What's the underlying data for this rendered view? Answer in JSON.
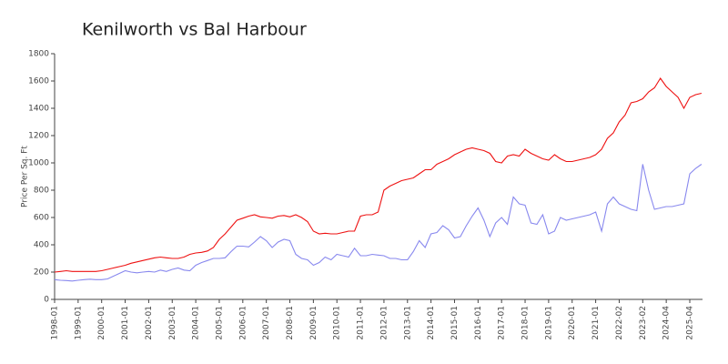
{
  "chart_data": {
    "type": "line",
    "title": "Kenilworth vs Bal Harbour",
    "y_label": "Price Per Sq. Ft",
    "categories": [
      "1998-01",
      null,
      null,
      null,
      "1999-01",
      null,
      null,
      null,
      "2000-01",
      null,
      null,
      null,
      "2001-01",
      null,
      null,
      null,
      "2002-01",
      null,
      null,
      null,
      "2003-01",
      null,
      null,
      null,
      "2004-01",
      null,
      null,
      null,
      "2005-01",
      null,
      null,
      null,
      "2006-01",
      null,
      null,
      null,
      "2007-01",
      null,
      null,
      null,
      "2008-01",
      null,
      null,
      null,
      "2009-01",
      null,
      null,
      null,
      "2010-01",
      null,
      null,
      null,
      "2011-01",
      null,
      null,
      null,
      "2012-01",
      null,
      null,
      null,
      "2013-01",
      null,
      null,
      null,
      "2014-01",
      null,
      null,
      null,
      "2015-01",
      null,
      null,
      null,
      "2016-01",
      null,
      null,
      null,
      "2017-01",
      null,
      null,
      null,
      "2018-01",
      null,
      null,
      null,
      "2019-01",
      null,
      null,
      null,
      "2020-01",
      null,
      null,
      null,
      "2021-01",
      null,
      null,
      null,
      "2022-02",
      null,
      null,
      null,
      "2023-02",
      null,
      null,
      null,
      "2024-04",
      null,
      null,
      null,
      "2025-04",
      null,
      null
    ],
    "series": [
      {
        "name": "Kenilworth",
        "color": "#ee1111",
        "values": [
          200,
          205,
          210,
          205,
          205,
          205,
          205,
          205,
          210,
          220,
          230,
          240,
          250,
          265,
          275,
          285,
          295,
          305,
          310,
          305,
          300,
          300,
          310,
          330,
          340,
          345,
          355,
          380,
          440,
          480,
          530,
          580,
          595,
          610,
          620,
          605,
          600,
          595,
          610,
          615,
          605,
          620,
          600,
          570,
          500,
          480,
          485,
          480,
          480,
          490,
          500,
          500,
          610,
          620,
          620,
          640,
          800,
          830,
          850,
          870,
          880,
          890,
          920,
          950,
          950,
          990,
          1010,
          1030,
          1060,
          1080,
          1100,
          1110,
          1100,
          1090,
          1070,
          1010,
          1000,
          1050,
          1060,
          1050,
          1100,
          1070,
          1050,
          1030,
          1020,
          1060,
          1030,
          1010,
          1010,
          1020,
          1030,
          1040,
          1060,
          1100,
          1180,
          1220,
          1300,
          1350,
          1440,
          1450,
          1470,
          1520,
          1550,
          1620,
          1560,
          1520,
          1480,
          1400,
          1480,
          1500,
          1510
        ]
      },
      {
        "name": "Bal Harbour",
        "color": "#8888ee",
        "values": [
          145,
          140,
          138,
          135,
          140,
          145,
          148,
          145,
          145,
          150,
          170,
          190,
          210,
          200,
          195,
          200,
          205,
          200,
          215,
          205,
          220,
          230,
          215,
          210,
          250,
          270,
          285,
          300,
          300,
          305,
          350,
          390,
          390,
          385,
          420,
          460,
          430,
          380,
          420,
          440,
          430,
          330,
          300,
          290,
          250,
          270,
          310,
          290,
          330,
          320,
          310,
          375,
          320,
          320,
          330,
          325,
          320,
          300,
          300,
          290,
          290,
          350,
          430,
          380,
          480,
          490,
          540,
          510,
          450,
          460,
          540,
          610,
          670,
          580,
          460,
          560,
          600,
          550,
          750,
          700,
          690,
          560,
          550,
          620,
          480,
          500,
          600,
          580,
          590,
          600,
          610,
          620,
          640,
          500,
          700,
          750,
          700,
          680,
          660,
          650,
          990,
          800,
          660,
          670,
          680,
          680,
          690,
          700,
          920,
          960,
          990
        ]
      }
    ],
    "ylim": [
      0,
      1800
    ],
    "yticks": [
      0,
      200,
      400,
      600,
      800,
      1000,
      1200,
      1400,
      1600,
      1800
    ]
  }
}
